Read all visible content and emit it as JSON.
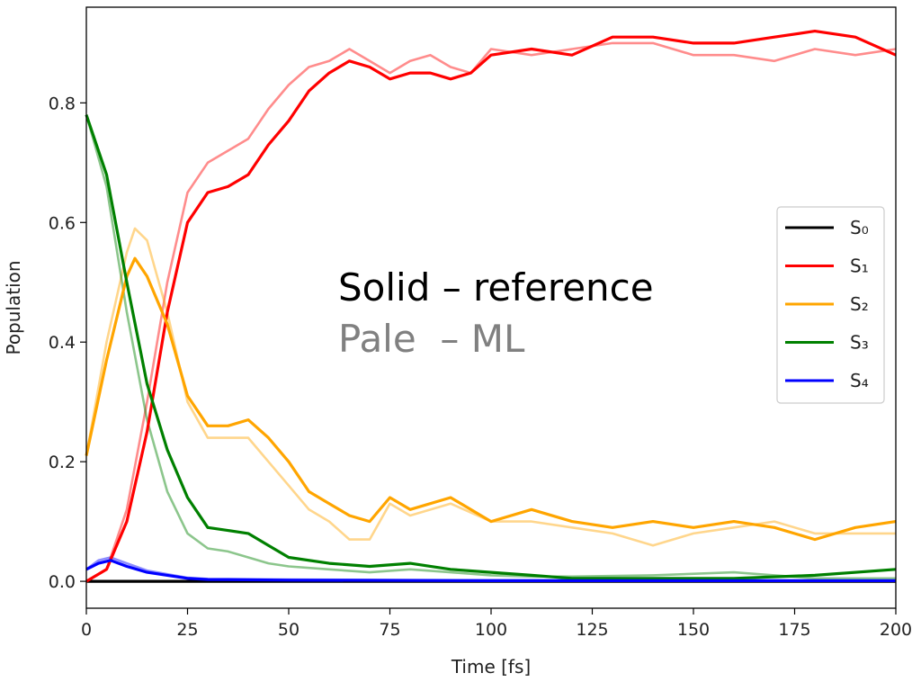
{
  "chart_data": {
    "type": "line",
    "xlabel": "Time [fs]",
    "ylabel": "Population",
    "xlim": [
      0,
      200
    ],
    "ylim": [
      -0.045,
      0.96
    ],
    "xticks": [
      0,
      25,
      50,
      75,
      100,
      125,
      150,
      175,
      200
    ],
    "yticks": [
      0.0,
      0.2,
      0.4,
      0.6,
      0.8
    ],
    "xtick_labels": [
      "0",
      "25",
      "50",
      "75",
      "100",
      "125",
      "150",
      "175",
      "200"
    ],
    "ytick_labels": [
      "0.0",
      "0.2",
      "0.4",
      "0.6",
      "0.8"
    ],
    "grid": false,
    "legend_position": "right",
    "annotations": [
      {
        "text": "Solid – reference",
        "color": "#000000"
      },
      {
        "text": "Pale  – ML",
        "color": "#808080"
      }
    ],
    "series": [
      {
        "name": "S₀",
        "color": "#000000",
        "style": "solid",
        "x": [
          0,
          200
        ],
        "y": [
          0.0,
          0.0
        ]
      },
      {
        "name": "S₁",
        "color": "#ff0000",
        "style": "solid",
        "x": [
          0,
          5,
          10,
          15,
          20,
          25,
          30,
          35,
          40,
          45,
          50,
          55,
          60,
          65,
          70,
          75,
          80,
          85,
          90,
          95,
          100,
          110,
          120,
          130,
          140,
          150,
          160,
          170,
          180,
          190,
          200
        ],
        "y": [
          0.0,
          0.02,
          0.1,
          0.25,
          0.45,
          0.6,
          0.65,
          0.66,
          0.68,
          0.73,
          0.77,
          0.82,
          0.85,
          0.87,
          0.86,
          0.84,
          0.85,
          0.85,
          0.84,
          0.85,
          0.88,
          0.89,
          0.88,
          0.91,
          0.91,
          0.9,
          0.9,
          0.91,
          0.92,
          0.91,
          0.88
        ]
      },
      {
        "name": "S₂",
        "color": "#ffa500",
        "style": "solid",
        "x": [
          0,
          5,
          10,
          12,
          15,
          20,
          25,
          30,
          35,
          40,
          45,
          50,
          55,
          60,
          65,
          70,
          75,
          80,
          90,
          100,
          110,
          120,
          130,
          140,
          150,
          160,
          170,
          180,
          190,
          200
        ],
        "y": [
          0.21,
          0.37,
          0.51,
          0.54,
          0.51,
          0.43,
          0.31,
          0.26,
          0.26,
          0.27,
          0.24,
          0.2,
          0.15,
          0.13,
          0.11,
          0.1,
          0.14,
          0.12,
          0.14,
          0.1,
          0.12,
          0.1,
          0.09,
          0.1,
          0.09,
          0.1,
          0.09,
          0.07,
          0.09,
          0.1
        ]
      },
      {
        "name": "S₃",
        "color": "#008000",
        "style": "solid",
        "x": [
          0,
          5,
          10,
          15,
          20,
          25,
          30,
          35,
          40,
          45,
          50,
          60,
          70,
          80,
          90,
          100,
          110,
          120,
          140,
          160,
          180,
          200
        ],
        "y": [
          0.78,
          0.68,
          0.5,
          0.33,
          0.22,
          0.14,
          0.09,
          0.085,
          0.08,
          0.06,
          0.04,
          0.03,
          0.025,
          0.03,
          0.02,
          0.015,
          0.01,
          0.005,
          0.005,
          0.005,
          0.01,
          0.02
        ]
      },
      {
        "name": "S₄",
        "color": "#0000ff",
        "style": "solid",
        "x": [
          0,
          3,
          6,
          10,
          15,
          20,
          25,
          30,
          50,
          100,
          150,
          200
        ],
        "y": [
          0.02,
          0.03,
          0.035,
          0.025,
          0.015,
          0.01,
          0.005,
          0.003,
          0.002,
          0.001,
          0.001,
          0.001
        ]
      },
      {
        "name": "",
        "color": "#ff0000",
        "style": "pale",
        "x": [
          0,
          5,
          10,
          15,
          20,
          25,
          30,
          35,
          40,
          45,
          50,
          55,
          60,
          65,
          70,
          75,
          80,
          85,
          90,
          95,
          100,
          110,
          120,
          130,
          140,
          150,
          160,
          170,
          180,
          190,
          200
        ],
        "y": [
          0.0,
          0.02,
          0.12,
          0.3,
          0.5,
          0.65,
          0.7,
          0.72,
          0.74,
          0.79,
          0.83,
          0.86,
          0.87,
          0.89,
          0.87,
          0.85,
          0.87,
          0.88,
          0.86,
          0.85,
          0.89,
          0.88,
          0.89,
          0.9,
          0.9,
          0.88,
          0.88,
          0.87,
          0.89,
          0.88,
          0.89
        ]
      },
      {
        "name": "",
        "color": "#ffa500",
        "style": "pale",
        "x": [
          0,
          5,
          10,
          12,
          15,
          20,
          25,
          30,
          35,
          40,
          45,
          50,
          55,
          60,
          65,
          70,
          75,
          80,
          90,
          100,
          110,
          120,
          130,
          140,
          150,
          160,
          170,
          180,
          190,
          200
        ],
        "y": [
          0.21,
          0.4,
          0.55,
          0.59,
          0.57,
          0.45,
          0.3,
          0.24,
          0.24,
          0.24,
          0.2,
          0.16,
          0.12,
          0.1,
          0.07,
          0.07,
          0.13,
          0.11,
          0.13,
          0.1,
          0.1,
          0.09,
          0.08,
          0.06,
          0.08,
          0.09,
          0.1,
          0.08,
          0.08,
          0.08
        ]
      },
      {
        "name": "",
        "color": "#008000",
        "style": "pale",
        "x": [
          0,
          5,
          10,
          15,
          20,
          25,
          30,
          35,
          40,
          45,
          50,
          60,
          70,
          80,
          90,
          100,
          110,
          120,
          140,
          160,
          180,
          200
        ],
        "y": [
          0.78,
          0.66,
          0.45,
          0.27,
          0.15,
          0.08,
          0.055,
          0.05,
          0.04,
          0.03,
          0.025,
          0.02,
          0.015,
          0.02,
          0.015,
          0.01,
          0.008,
          0.008,
          0.01,
          0.015,
          0.005,
          0.005
        ]
      },
      {
        "name": "",
        "color": "#0000ff",
        "style": "pale",
        "x": [
          0,
          3,
          6,
          10,
          15,
          20,
          25,
          30,
          50,
          100,
          150,
          200
        ],
        "y": [
          0.02,
          0.035,
          0.04,
          0.03,
          0.018,
          0.012,
          0.006,
          0.004,
          0.003,
          0.002,
          0.002,
          0.001
        ]
      }
    ]
  }
}
